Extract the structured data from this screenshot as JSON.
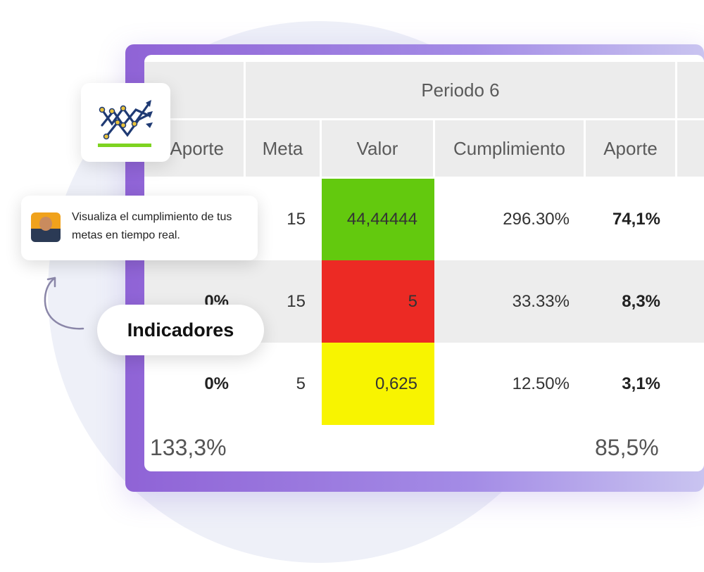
{
  "header": {
    "period": "Periodo 6",
    "columns": [
      "Aporte",
      "Meta",
      "Valor",
      "Cumplimiento",
      "Aporte"
    ]
  },
  "rows": [
    {
      "aporte_prev": "",
      "meta": "15",
      "valor": "44,44444",
      "valor_color": "#63c90e",
      "cumplimiento": "296.30%",
      "aporte": "74,1%"
    },
    {
      "aporte_prev": "0%",
      "meta": "15",
      "valor": "5",
      "valor_color": "#ec2a24",
      "cumplimiento": "33.33%",
      "aporte": "8,3%"
    },
    {
      "aporte_prev": "0%",
      "meta": "5",
      "valor": "0,625",
      "valor_color": "#f8f400",
      "cumplimiento": "12.50%",
      "aporte": "3,1%"
    }
  ],
  "totals": {
    "left": "133,3%",
    "right": "85,5%"
  },
  "tooltip": {
    "text": "Visualiza el cumplimiento de tus metas en tiempo real."
  },
  "badge": {
    "label": "Indicadores"
  },
  "icons": {
    "logo": "trend-chart-icon",
    "arrow": "curved-arrow-icon",
    "avatar": "user-avatar"
  },
  "colors": {
    "frame": "#9b7be0",
    "green": "#63c90e",
    "red": "#ec2a24",
    "yellow": "#f8f400"
  }
}
